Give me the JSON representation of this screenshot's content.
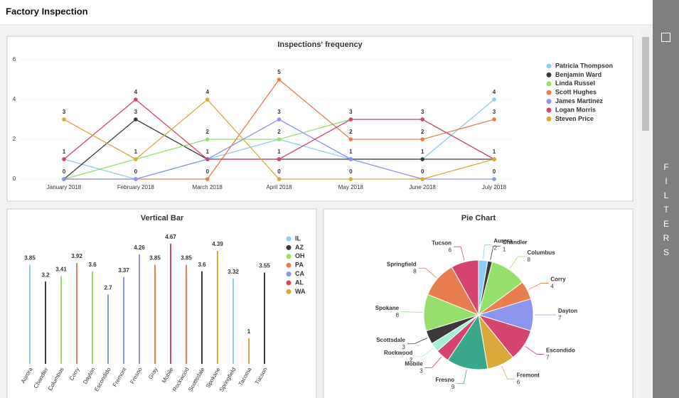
{
  "header": {
    "title": "Factory Inspection"
  },
  "sidebar": {
    "label": "FILTERS"
  },
  "chart_data": [
    {
      "type": "line",
      "title": "Inspections' frequency",
      "categories": [
        "January 2018",
        "February 2018",
        "March 2018",
        "April 2018",
        "May 2018",
        "June 2018",
        "July 2018"
      ],
      "series": [
        {
          "name": "Patricia Thompson",
          "color": "#8ccdf2",
          "values": [
            1,
            0,
            1,
            2,
            1,
            1,
            4
          ]
        },
        {
          "name": "Benjamin Ward",
          "color": "#3a3a3a",
          "values": [
            0,
            3,
            1,
            1,
            1,
            1,
            1
          ]
        },
        {
          "name": "Linda Russel",
          "color": "#94e06a",
          "values": [
            0,
            1,
            2,
            2,
            3,
            3,
            1
          ]
        },
        {
          "name": "Scott Hughes",
          "color": "#e87d4e",
          "values": [
            0,
            0,
            0,
            5,
            2,
            2,
            3
          ]
        },
        {
          "name": "James Martinez",
          "color": "#8b95ec",
          "values": [
            0,
            0,
            1,
            3,
            1,
            0,
            0
          ]
        },
        {
          "name": "Logan Morris",
          "color": "#d4446e",
          "values": [
            1,
            4,
            1,
            1,
            3,
            3,
            1
          ]
        },
        {
          "name": "Steven Price",
          "color": "#d9a93a",
          "values": [
            3,
            1,
            4,
            0,
            0,
            0,
            1
          ]
        }
      ],
      "ylim": [
        0,
        6
      ],
      "yticks": [
        0,
        2,
        4,
        6
      ],
      "grid": true,
      "legend": "right"
    },
    {
      "type": "bar",
      "title": "Vertical Bar",
      "categories": [
        "Aurora",
        "Chandler",
        "Columbus",
        "Corry",
        "Dayton",
        "Escondido",
        "Fremont",
        "Fresno",
        "Gray",
        "Mobile",
        "Rockwood",
        "Scottsdale",
        "Spokane",
        "Springfield",
        "Tacoma",
        "Tucson"
      ],
      "values": [
        3.85,
        3.2,
        3.41,
        3.92,
        3.6,
        2.7,
        3.37,
        4.26,
        3.85,
        4.67,
        3.85,
        3.6,
        4.39,
        3.32,
        1,
        3.55
      ],
      "groups": [
        "IL",
        "AZ",
        "OH",
        "PA",
        "OH",
        "CA",
        "CA",
        "CA",
        "PA",
        "AL",
        "PA",
        "AZ",
        "WA",
        "IL",
        "WA",
        "AZ"
      ],
      "legend": [
        {
          "name": "IL",
          "color": "#8ccdf2"
        },
        {
          "name": "AZ",
          "color": "#3a3a3a"
        },
        {
          "name": "OH",
          "color": "#94e06a"
        },
        {
          "name": "PA",
          "color": "#e87d4e"
        },
        {
          "name": "CA",
          "color": "#8b95ec"
        },
        {
          "name": "AL",
          "color": "#d4446e"
        },
        {
          "name": "WA",
          "color": "#d9a93a"
        }
      ],
      "ylim": [
        0,
        5
      ]
    },
    {
      "type": "pie",
      "title": "Pie Chart",
      "categories": [
        "Aurora",
        "Chandler",
        "Columbus",
        "Corry",
        "Dayton",
        "Escondido",
        "Fremont",
        "Fresno",
        "Mobile",
        "Rockwood",
        "Scottsdale",
        "Spokane",
        "Springfield",
        "Tucson"
      ],
      "values": [
        2,
        1,
        8,
        4,
        7,
        7,
        6,
        9,
        3,
        2,
        3,
        8,
        8,
        6
      ],
      "colors": [
        "#8ccdf2",
        "#3a3a3a",
        "#94e06a",
        "#e87d4e",
        "#8b95ec",
        "#d4446e",
        "#d9a93a",
        "#3aa68a",
        "#d4446e",
        "#a4efd8",
        "#3a3a3a",
        "#94e06a",
        "#e87d4e",
        "#d4446e"
      ]
    }
  ]
}
